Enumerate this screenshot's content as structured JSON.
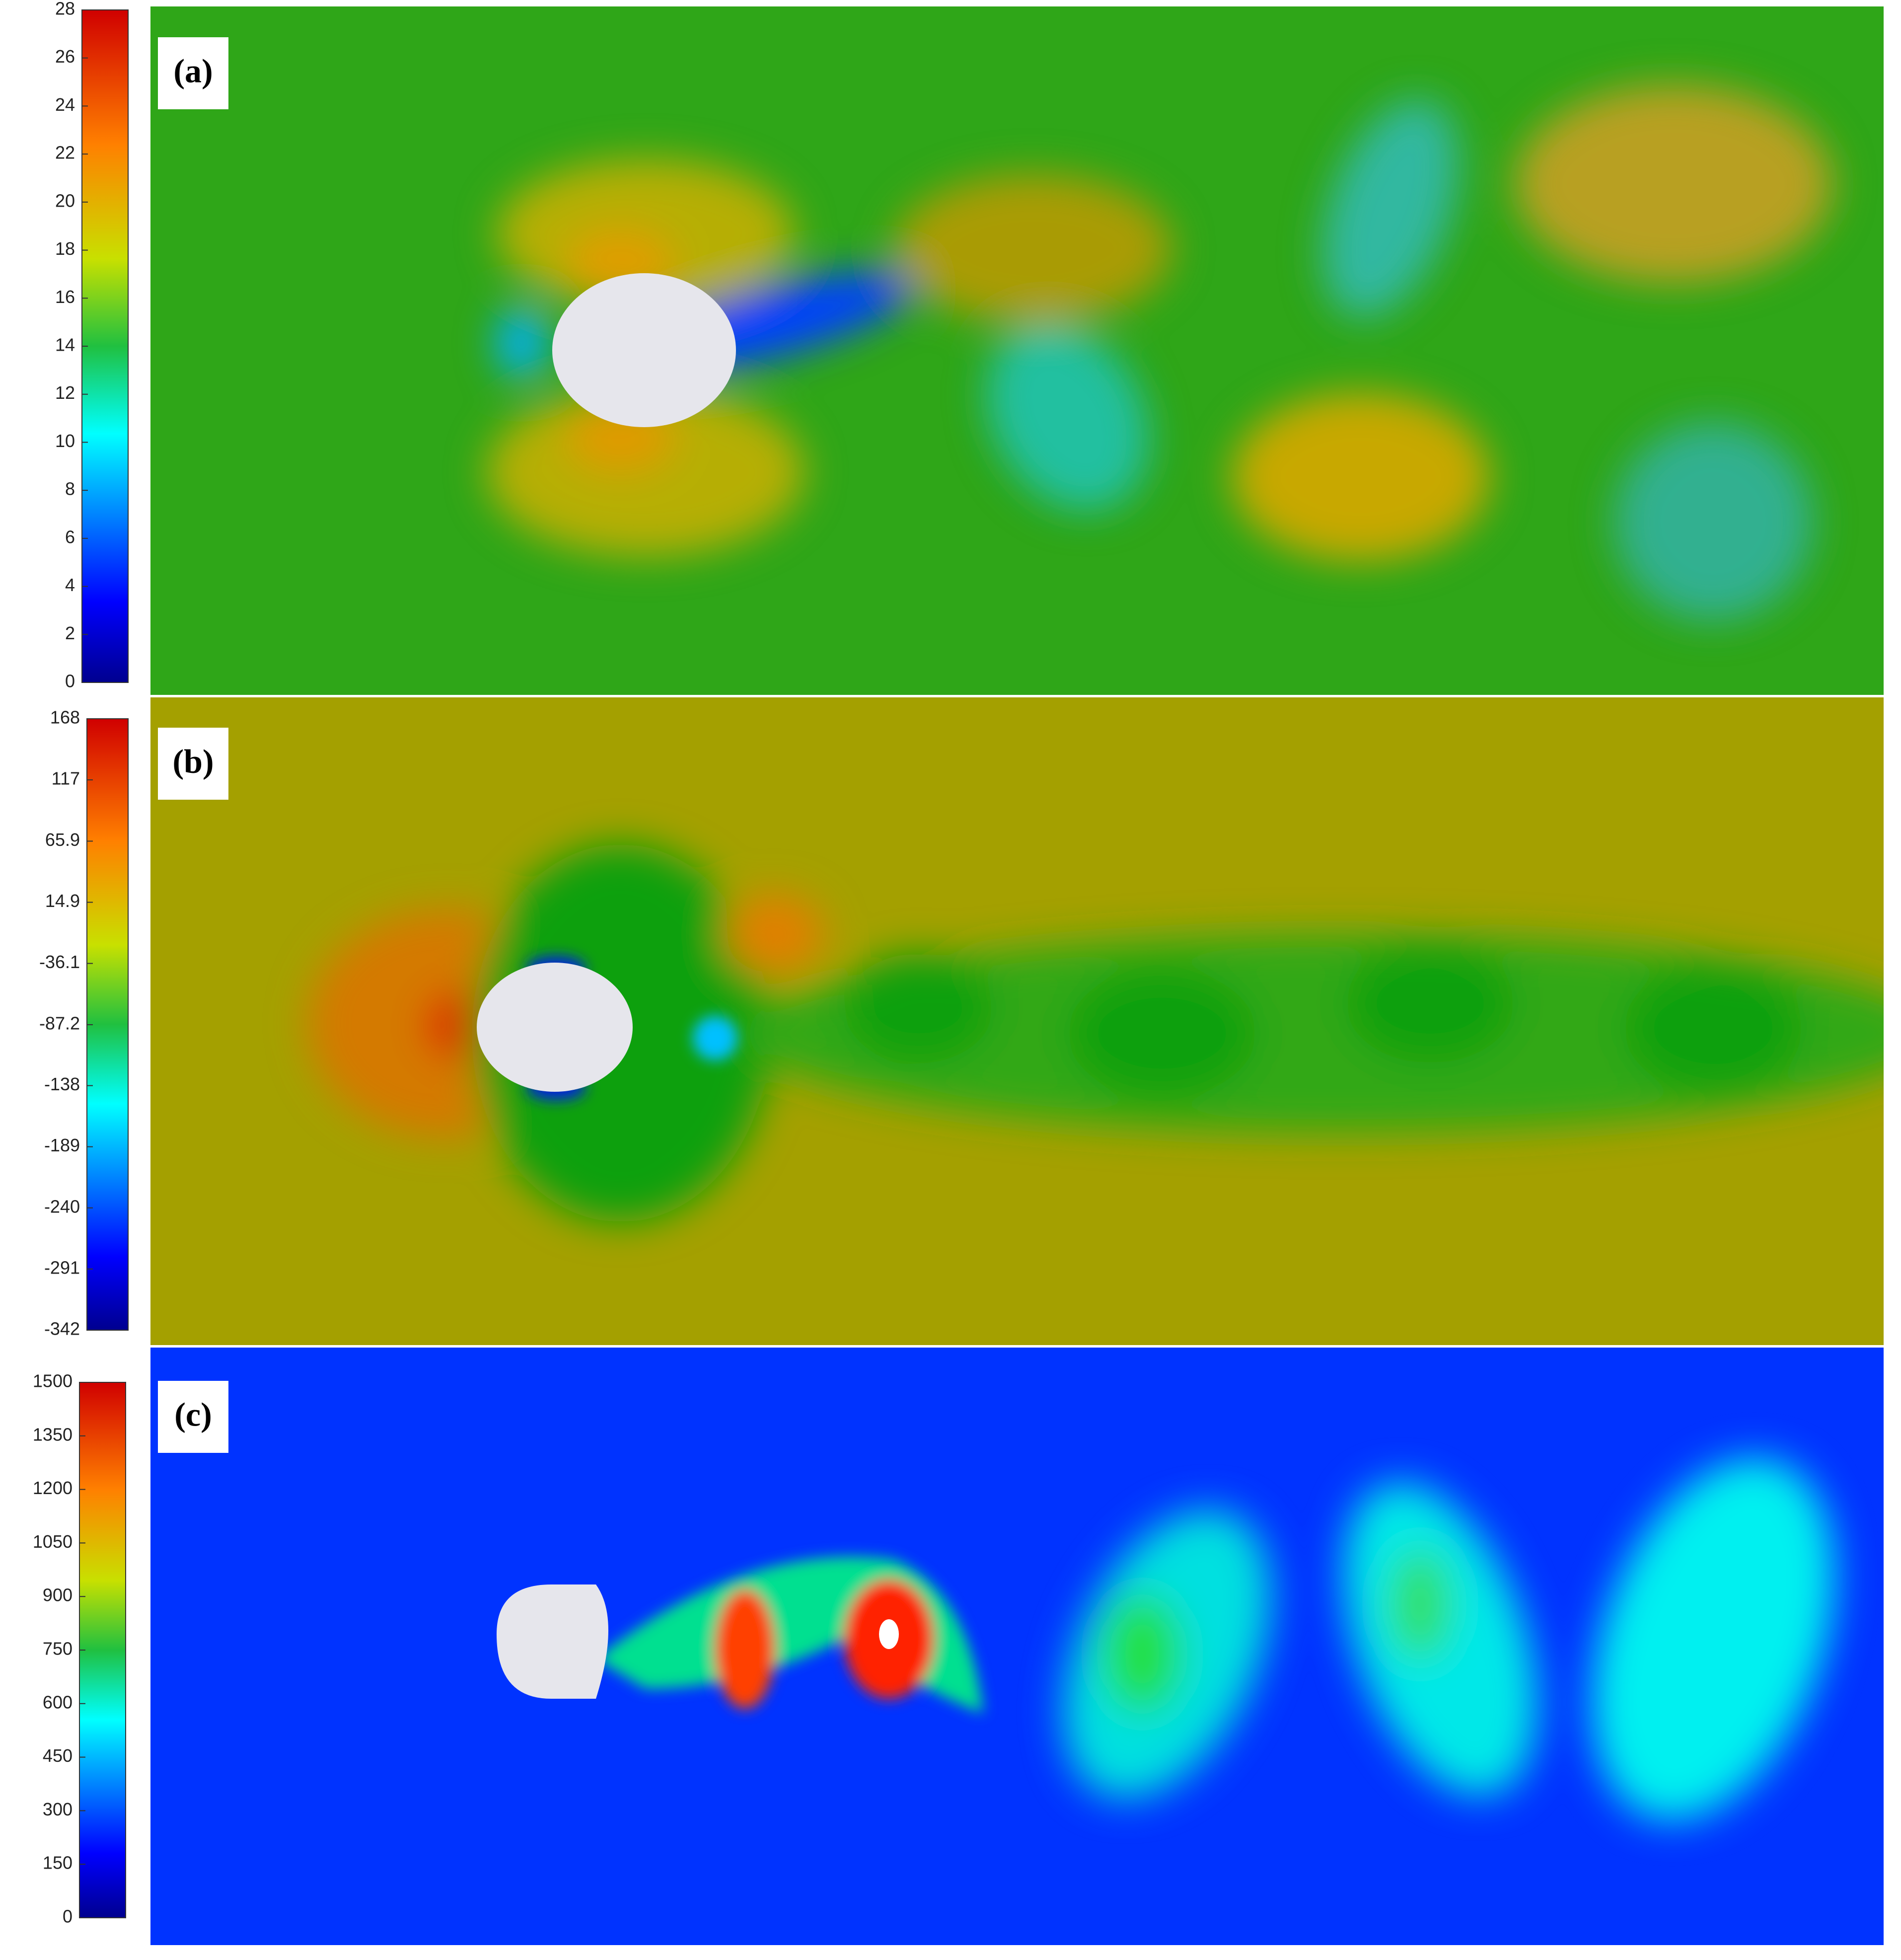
{
  "chart_data": [
    {
      "type": "contour",
      "label": "(a)",
      "ylim": [
        0,
        28
      ],
      "yticks": [
        0,
        2,
        4,
        6,
        8,
        10,
        12,
        14,
        16,
        18,
        20,
        22,
        24,
        26,
        28
      ]
    },
    {
      "type": "contour",
      "label": "(b)",
      "ylim": [
        -342,
        168
      ],
      "yticks": [
        -342,
        -291,
        -240,
        -189,
        -138,
        -87.2,
        -36.1,
        14.9,
        65.9,
        117,
        168
      ]
    },
    {
      "type": "contour",
      "label": "(c)",
      "ylim": [
        0,
        1500
      ],
      "yticks": [
        0,
        150,
        300,
        450,
        600,
        750,
        900,
        1050,
        1200,
        1350,
        1500
      ]
    }
  ]
}
